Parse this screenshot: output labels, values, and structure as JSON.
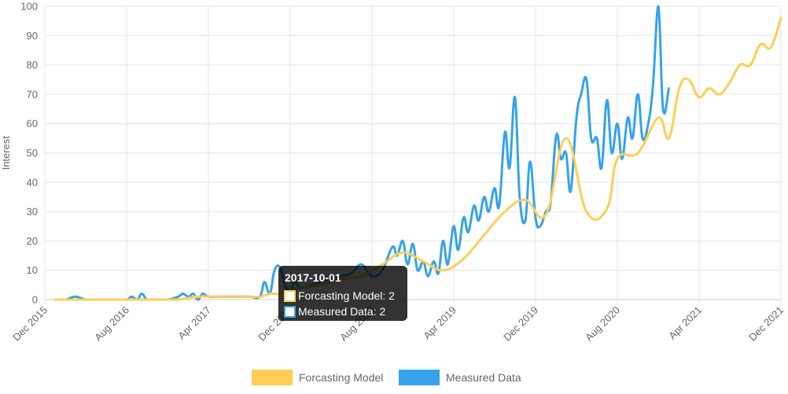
{
  "chart_data": {
    "type": "line",
    "title": "",
    "xlabel": "",
    "ylabel": "Interest",
    "ylim": [
      0,
      100
    ],
    "y_ticks": [
      0,
      10,
      20,
      30,
      40,
      50,
      60,
      70,
      80,
      90,
      100
    ],
    "x_range": [
      "2015-12-01",
      "2021-12-01"
    ],
    "x_tick_labels": [
      "Dec 2015",
      "Aug 2016",
      "Apr 2017",
      "Dec 2017",
      "Aug 2018",
      "Apr 2019",
      "Dec 2019",
      "Aug 2020",
      "Apr 2021",
      "Dec 2021"
    ],
    "grid": true,
    "legend_position": "bottom",
    "series": [
      {
        "name": "Measured Data",
        "color": "#36A2EB",
        "x": [
          "2016-01-01",
          "2016-01-15",
          "2016-02-01",
          "2016-03-01",
          "2016-04-01",
          "2016-05-01",
          "2016-06-01",
          "2016-07-01",
          "2016-08-01",
          "2016-08-15",
          "2016-09-01",
          "2016-09-15",
          "2016-10-01",
          "2016-11-01",
          "2016-12-01",
          "2017-01-01",
          "2017-01-15",
          "2017-02-01",
          "2017-02-15",
          "2017-03-01",
          "2017-03-15",
          "2017-04-01",
          "2017-05-01",
          "2017-06-01",
          "2017-07-01",
          "2017-08-01",
          "2017-09-01",
          "2017-09-15",
          "2017-10-01",
          "2017-10-15",
          "2017-11-01",
          "2017-11-15",
          "2017-12-01",
          "2017-12-15",
          "2018-01-01",
          "2018-02-01",
          "2018-03-01",
          "2018-04-01",
          "2018-05-01",
          "2018-06-01",
          "2018-07-01",
          "2018-08-01",
          "2018-09-01",
          "2018-10-01",
          "2018-10-15",
          "2018-11-01",
          "2018-11-15",
          "2018-12-01",
          "2018-12-15",
          "2019-01-01",
          "2019-01-15",
          "2019-02-01",
          "2019-02-15",
          "2019-03-01",
          "2019-03-15",
          "2019-04-01",
          "2019-04-15",
          "2019-05-01",
          "2019-05-15",
          "2019-06-01",
          "2019-06-15",
          "2019-07-01",
          "2019-07-15",
          "2019-08-01",
          "2019-08-15",
          "2019-09-01",
          "2019-09-15",
          "2019-10-01",
          "2019-10-15",
          "2019-11-01",
          "2019-11-15",
          "2019-12-01",
          "2019-12-15",
          "2020-01-01",
          "2020-01-15",
          "2020-02-01",
          "2020-02-15",
          "2020-03-01",
          "2020-03-15",
          "2020-04-01",
          "2020-04-15",
          "2020-05-01",
          "2020-05-15",
          "2020-06-01",
          "2020-06-15",
          "2020-07-01",
          "2020-07-15",
          "2020-08-01",
          "2020-08-15",
          "2020-09-01",
          "2020-09-15",
          "2020-10-01",
          "2020-10-15",
          "2020-11-01",
          "2020-11-15",
          "2020-12-01",
          "2020-12-15",
          "2021-01-01"
        ],
        "y": [
          0,
          0,
          0,
          1,
          0,
          0,
          0,
          0,
          0,
          1,
          0,
          2,
          0,
          0,
          0,
          1,
          2,
          1,
          2,
          0,
          2,
          1,
          1,
          1,
          1,
          1,
          1,
          6,
          2,
          10,
          11,
          5,
          3,
          6,
          4,
          5,
          6,
          7,
          8,
          9,
          12,
          8,
          10,
          18,
          15,
          20,
          12,
          19,
          10,
          13,
          8,
          13,
          9,
          20,
          12,
          25,
          17,
          28,
          23,
          32,
          27,
          35,
          30,
          38,
          32,
          57,
          45,
          69,
          35,
          27,
          47,
          28,
          25,
          30,
          33,
          56,
          48,
          50,
          37,
          62,
          70,
          75,
          55,
          55,
          45,
          68,
          50,
          60,
          48,
          62,
          55,
          70,
          55,
          60,
          73,
          100,
          65,
          72
        ]
      },
      {
        "name": "Forcasting Model",
        "color": "#FFCD56",
        "x": [
          "2016-01-01",
          "2016-03-01",
          "2016-05-01",
          "2016-07-01",
          "2016-09-01",
          "2016-11-01",
          "2017-01-01",
          "2017-03-01",
          "2017-05-01",
          "2017-07-01",
          "2017-09-01",
          "2017-10-01",
          "2017-11-01",
          "2017-12-01",
          "2018-01-01",
          "2018-03-01",
          "2018-05-01",
          "2018-07-01",
          "2018-09-01",
          "2018-11-01",
          "2019-01-01",
          "2019-03-01",
          "2019-05-01",
          "2019-07-01",
          "2019-09-01",
          "2019-11-01",
          "2020-01-01",
          "2020-03-01",
          "2020-05-01",
          "2020-07-01",
          "2020-08-01",
          "2020-10-01",
          "2020-12-01",
          "2021-01-01",
          "2021-02-01",
          "2021-03-01",
          "2021-04-01",
          "2021-05-01",
          "2021-06-01",
          "2021-07-01",
          "2021-08-01",
          "2021-09-01",
          "2021-10-01",
          "2021-11-01",
          "2021-12-01"
        ],
        "y": [
          0,
          0,
          0,
          0,
          0,
          0,
          0,
          1,
          1,
          1,
          1,
          2,
          2,
          3,
          4,
          5,
          7,
          8,
          12,
          16,
          13,
          10,
          14,
          22,
          30,
          34,
          29,
          55,
          30,
          31,
          48,
          50,
          62,
          55,
          72,
          75,
          69,
          72,
          70,
          74,
          80,
          80,
          87,
          86,
          96
        ]
      }
    ],
    "tooltip": {
      "title": "2017-10-01",
      "lines": [
        "Forcasting Model: 2",
        "Measured Data: 2"
      ]
    }
  }
}
